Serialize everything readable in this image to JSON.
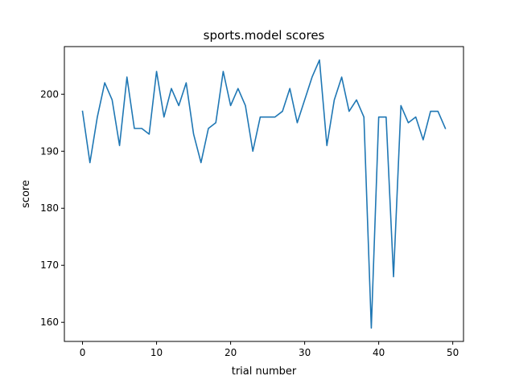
{
  "chart_data": {
    "type": "line",
    "title": "sports.model scores",
    "xlabel": "trial number",
    "ylabel": "score",
    "xlim": [
      -2.45,
      51.45
    ],
    "ylim": [
      156.65,
      208.35
    ],
    "xticks": [
      0,
      10,
      20,
      30,
      40,
      50
    ],
    "yticks": [
      160,
      170,
      180,
      190,
      200
    ],
    "grid": false,
    "color": "#1f77b4",
    "x": [
      0,
      1,
      2,
      3,
      4,
      5,
      6,
      7,
      8,
      9,
      10,
      11,
      12,
      13,
      14,
      15,
      16,
      17,
      18,
      19,
      20,
      21,
      22,
      23,
      24,
      25,
      26,
      27,
      28,
      29,
      30,
      31,
      32,
      33,
      34,
      35,
      36,
      37,
      38,
      39,
      40,
      41,
      42,
      43,
      44,
      45,
      46,
      47,
      48,
      49
    ],
    "y": [
      197,
      188,
      196,
      202,
      199,
      191,
      203,
      194,
      194,
      193,
      204,
      196,
      201,
      198,
      202,
      193,
      188,
      194,
      195,
      204,
      198,
      201,
      198,
      190,
      196,
      196,
      196,
      197,
      201,
      195,
      199,
      203,
      206,
      191,
      199,
      203,
      197,
      199,
      196,
      159,
      196,
      196,
      168,
      198,
      195,
      196,
      192,
      197,
      197,
      194
    ]
  }
}
